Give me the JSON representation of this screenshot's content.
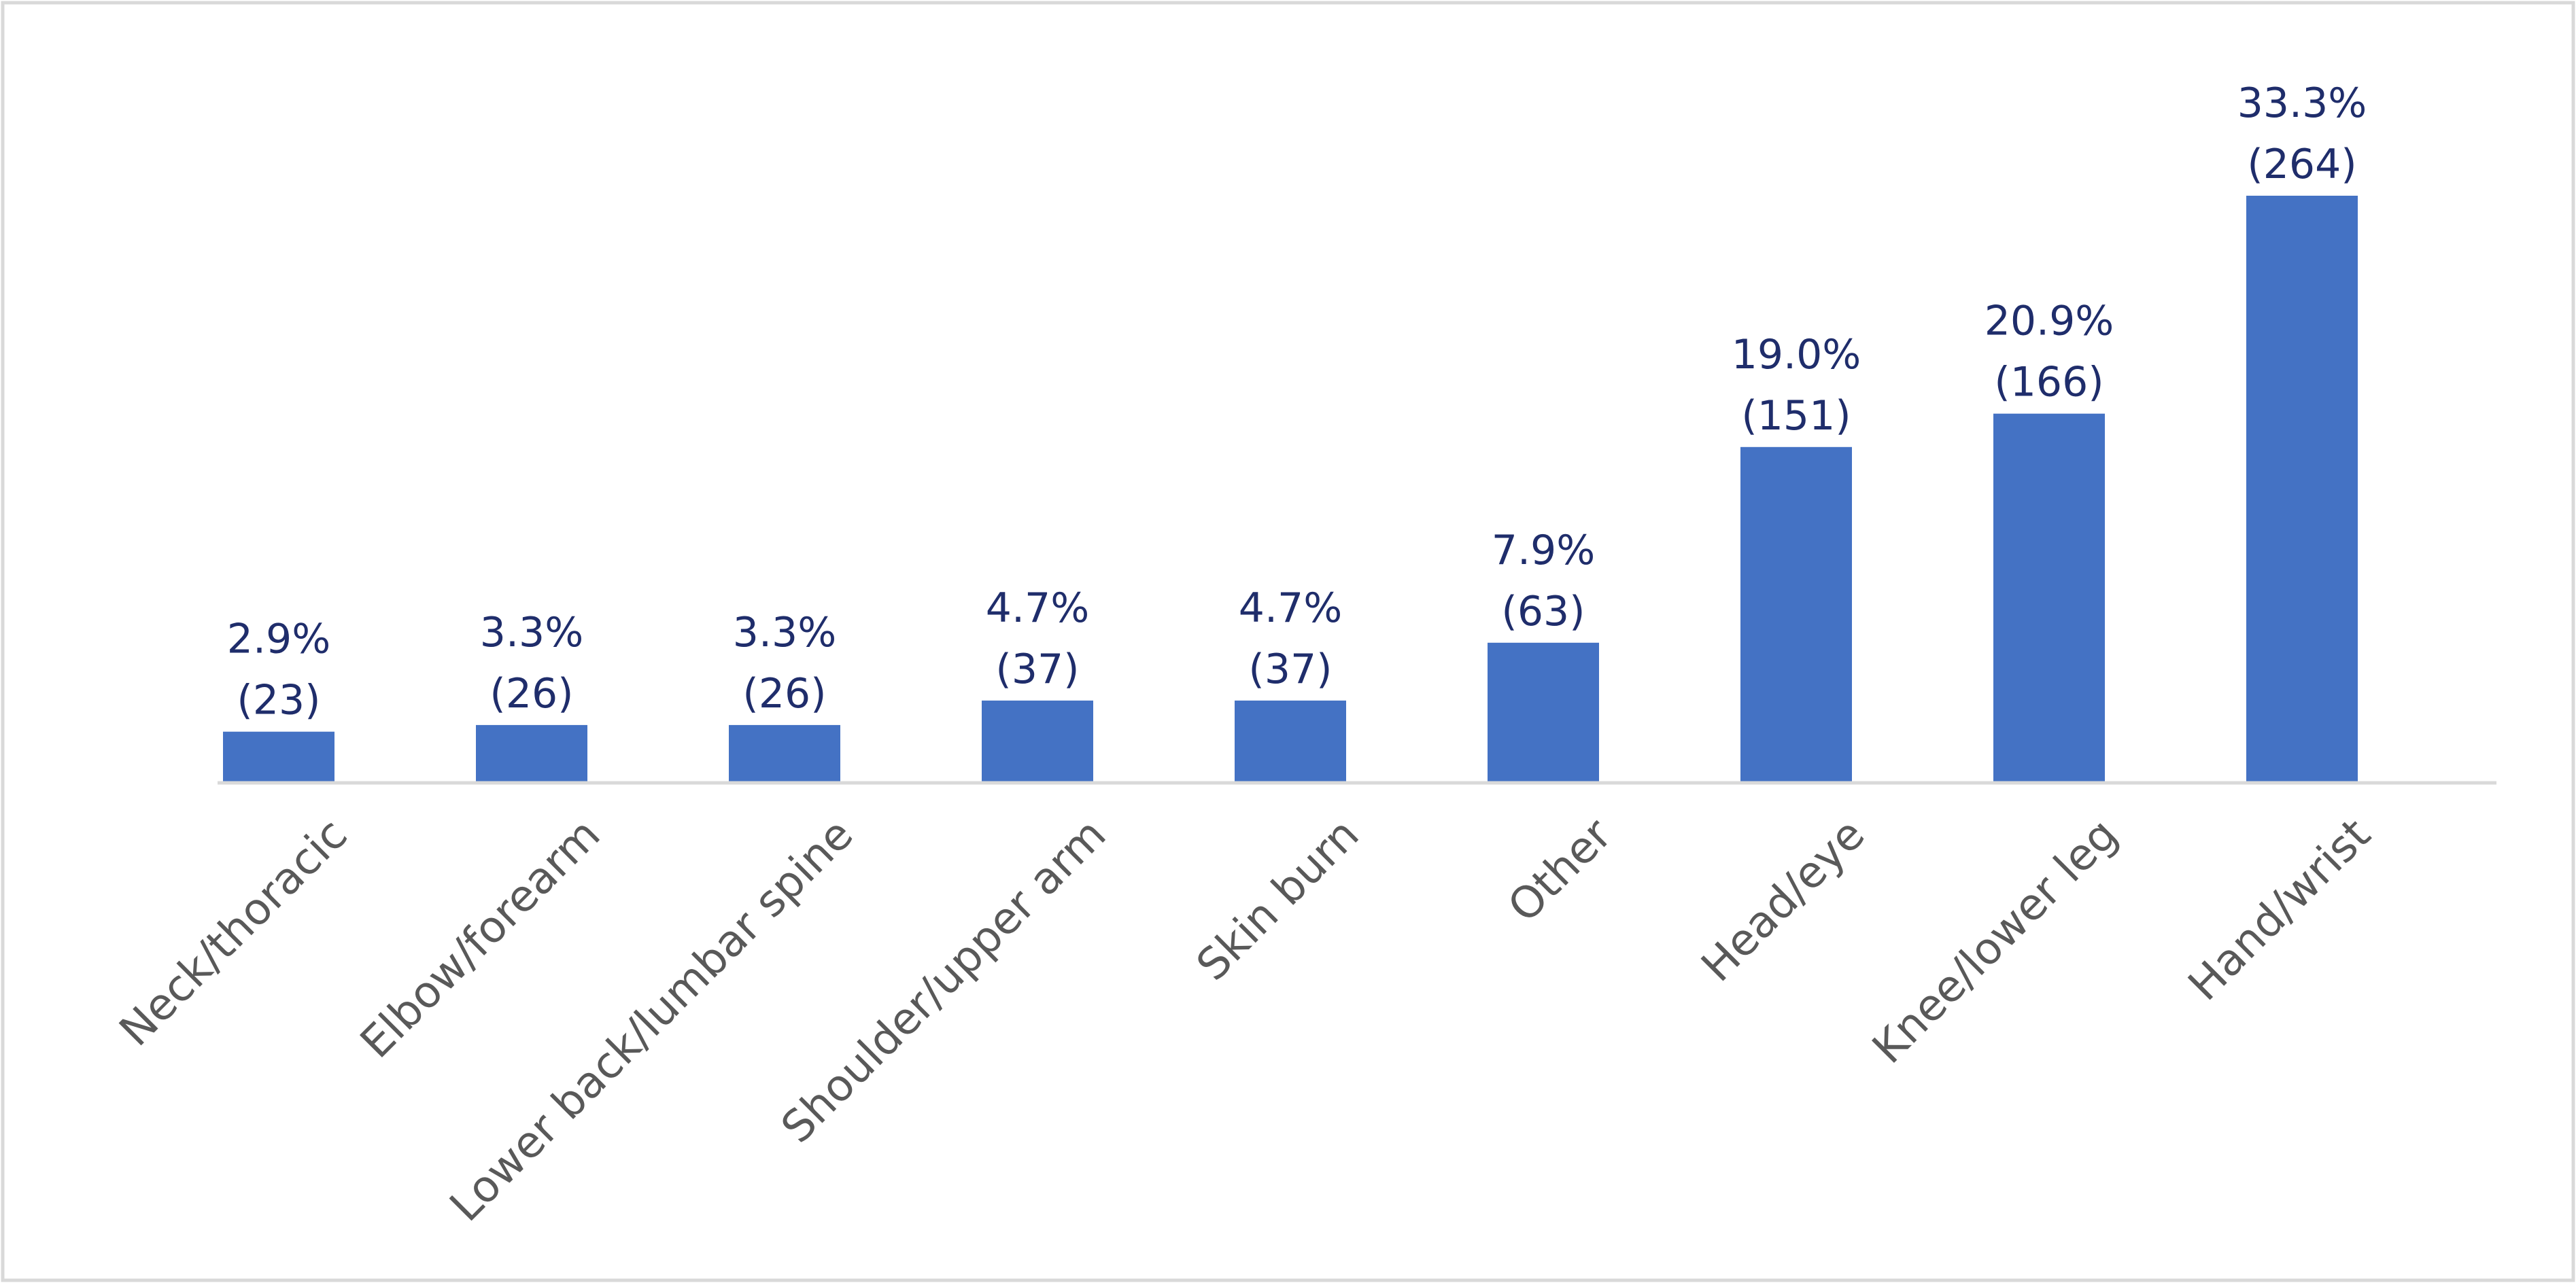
{
  "chart_data": {
    "type": "bar",
    "title": "",
    "xlabel": "",
    "ylabel": "",
    "categories": [
      "Neck/thoracic",
      "Elbow/forearm",
      "Lower back/lumbar spine",
      "Shoulder/upper arm",
      "Skin burn",
      "Other",
      "Head/eye",
      "Knee/lower leg",
      "Hand/wrist"
    ],
    "series": [
      {
        "values": [
          23,
          26,
          26,
          37,
          37,
          63,
          151,
          166,
          264
        ],
        "percent_labels": [
          "2.9%",
          "3.3%",
          "3.3%",
          "4.7%",
          "4.7%",
          "7.9%",
          "19.0%",
          "20.9%",
          "33.3%"
        ],
        "count_labels": [
          "(23)",
          "(26)",
          "(26)",
          "(37)",
          "(37)",
          "(63)",
          "(151)",
          "(166)",
          "(264)"
        ]
      }
    ],
    "ylim": [
      0,
      300
    ],
    "grid": false,
    "legend": "none",
    "colors": {
      "bar": "#4472c4",
      "axis": "#d9d9d9",
      "border": "#d9d9d9",
      "data_label": "#1f2d6b",
      "category_label": "#595959"
    }
  }
}
